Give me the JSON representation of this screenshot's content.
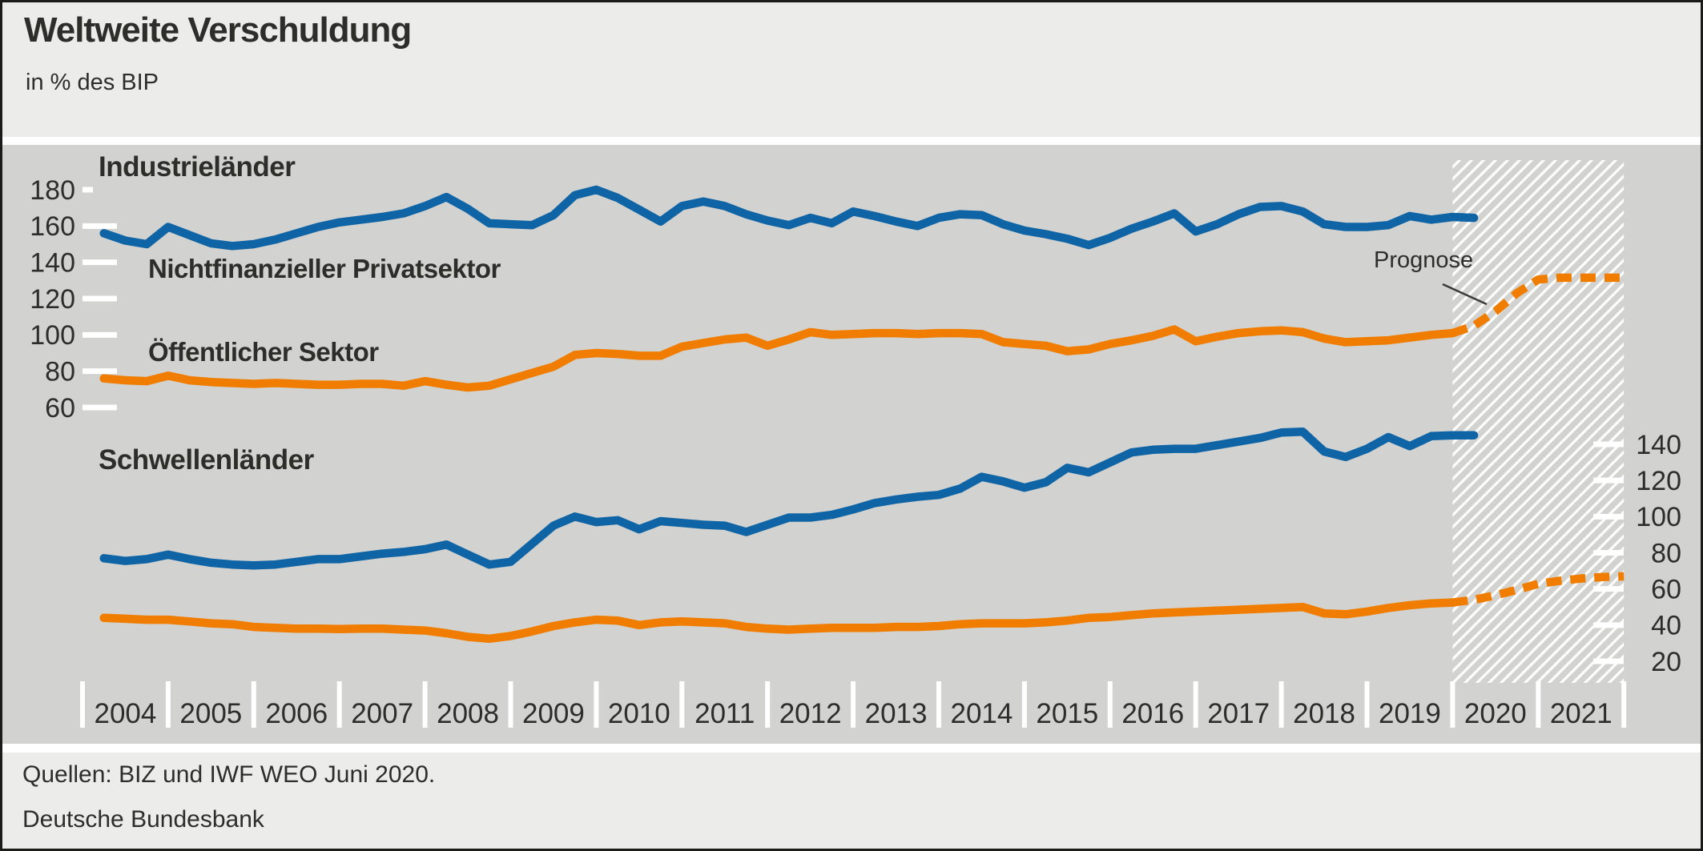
{
  "header": {
    "title": "Weltweite Verschuldung",
    "subtitle": "in % des BIP"
  },
  "footer": {
    "sources_line": "Quellen: BIZ und IWF WEO Juni 2020.",
    "publisher_line": "Deutsche Bundesbank"
  },
  "colors": {
    "private_sector": "#0e64a5",
    "public_sector": "#f07d00",
    "chart_bg": "#d2d2d0",
    "panel_bg": "#ececea",
    "tick": "#ffffff",
    "text": "#2d2d2a"
  },
  "chart_data": {
    "type": "line",
    "title": "Weltweite Verschuldung",
    "unit_label": "in % des BIP",
    "grid": "off",
    "legend_position": "inline-labels",
    "x_years": [
      "2004",
      "2005",
      "2006",
      "2007",
      "2008",
      "2009",
      "2010",
      "2011",
      "2012",
      "2013",
      "2014",
      "2015",
      "2016",
      "2017",
      "2018",
      "2019",
      "2020",
      "2021"
    ],
    "x_range": [
      2004,
      2022.05
    ],
    "forecast_label": "Prognose",
    "forecast_region": {
      "x_start": 2020.0,
      "x_end": 2022.0
    },
    "panels": [
      {
        "id": "advanced",
        "label": "Industrieländer",
        "axis_side": "left",
        "axis_ticks": [
          180,
          160,
          140,
          120,
          100,
          80,
          60
        ],
        "series": [
          {
            "name": "Nichtfinanzieller Privatsektor",
            "color_key": "private_sector",
            "x_start": 2004.25,
            "x_step": 0.25,
            "values": [
              156,
              152,
              150,
              159.5,
              155,
              150.5,
              149,
              150,
              152.5,
              156,
              159.5,
              162,
              163.5,
              165,
              167,
              171,
              176,
              169.5,
              161.5,
              161,
              160.5,
              166,
              177,
              180,
              175.5,
              169,
              162.5,
              171,
              173.5,
              171,
              166.5,
              163,
              160.5,
              164.5,
              161.5,
              168,
              165.5,
              162.5,
              160,
              164.5,
              166.5,
              166,
              161,
              157.5,
              155.5,
              153,
              149.5,
              153.5,
              158.5,
              162.5,
              167,
              157,
              161,
              166.5,
              170.5,
              171,
              168,
              161,
              159.5,
              159.5,
              160.5,
              165.5,
              163.5,
              165,
              164.5
            ]
          },
          {
            "name": "Öffentlicher Sektor",
            "color_key": "public_sector",
            "x_start": 2004.25,
            "x_step": 0.25,
            "values": [
              76,
              75,
              74.5,
              77.5,
              75,
              74,
              73.5,
              73,
              73.5,
              73,
              72.5,
              72.5,
              73,
              73,
              72,
              74.5,
              72.5,
              71,
              72,
              75.5,
              79,
              82.5,
              89,
              90,
              89.5,
              88.5,
              88.5,
              93.5,
              95.5,
              97.5,
              98.5,
              94,
              97.5,
              101.5,
              100,
              100.5,
              101,
              101,
              100.5,
              101,
              101,
              100.5,
              96,
              95,
              94,
              91,
              92,
              95,
              97,
              99.5,
              103,
              96.5,
              99,
              101,
              102,
              102.5,
              101.5,
              98,
              96,
              96.5,
              97,
              98.5,
              100,
              101
            ],
            "forecast": {
              "x_start": 2020.0,
              "x_step": 0.25,
              "values": [
                101,
                105,
                113,
                123,
                130.5,
                131.5,
                131.5,
                131.5,
                131.5
              ]
            }
          }
        ]
      },
      {
        "id": "emerging",
        "label": "Schwellenländer",
        "axis_side": "right",
        "axis_ticks": [
          140,
          120,
          100,
          80,
          60,
          40,
          20
        ],
        "series": [
          {
            "name": "Nichtfinanzieller Privatsektor",
            "color_key": "private_sector",
            "x_start": 2004.25,
            "x_step": 0.25,
            "values": [
              77,
              75.5,
              76.5,
              79,
              76.5,
              74.5,
              73.5,
              73,
              73.5,
              75,
              76.5,
              76.5,
              78,
              79.5,
              80.5,
              82,
              84.5,
              79,
              73.5,
              75,
              85,
              95,
              100,
              97,
              98,
              93,
              97.5,
              96.5,
              95.5,
              95,
              91.5,
              95.5,
              99.5,
              99.5,
              101,
              104,
              107.5,
              109.5,
              111,
              112,
              115.5,
              122,
              119.5,
              116,
              119,
              127,
              124.5,
              130,
              135.5,
              137,
              137.5,
              137.5,
              139.5,
              141.5,
              143.5,
              146.5,
              147,
              136,
              133,
              137.5,
              144,
              139,
              144.5,
              145,
              145
            ]
          },
          {
            "name": "Öffentlicher Sektor",
            "color_key": "public_sector",
            "x_start": 2004.25,
            "x_step": 0.25,
            "values": [
              44,
              43.5,
              43,
              43,
              42,
              41,
              40.5,
              39,
              38.5,
              38,
              38,
              37.8,
              38,
              38,
              37.5,
              37,
              35.5,
              33.5,
              32.5,
              34,
              36.5,
              39.5,
              41.5,
              43,
              42.5,
              40,
              41.5,
              42,
              41.5,
              41,
              39,
              38,
              37.5,
              38,
              38.5,
              38.5,
              38.5,
              39,
              39,
              39.5,
              40.5,
              41,
              41,
              41,
              41.5,
              42.5,
              44,
              44.5,
              45.5,
              46.5,
              47,
              47.5,
              48,
              48.5,
              49,
              49.5,
              50,
              46.5,
              46,
              47.5,
              49.5,
              51,
              52,
              52.5
            ],
            "forecast": {
              "x_start": 2020.0,
              "x_step": 0.25,
              "values": [
                52.5,
                54,
                56.5,
                59.5,
                62.8,
                64.5,
                65.8,
                66.6,
                67
              ]
            }
          }
        ]
      }
    ]
  }
}
